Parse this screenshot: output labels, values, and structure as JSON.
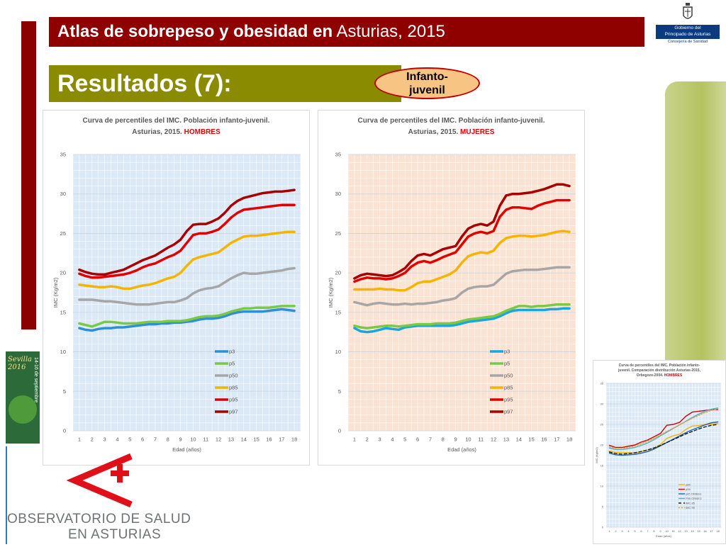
{
  "header": {
    "title_bold": "Atlas de sobrepeso y obesidad en",
    "title_light": "Asturias, 2015"
  },
  "section": {
    "title": "Resultados (7):",
    "tag_line1": "Infanto-",
    "tag_line2": "juvenil"
  },
  "gov_logo": {
    "line1": "Gobierno del",
    "line2": "Principado de Asturias",
    "line3": "Consejería de Sanidad"
  },
  "poster": {
    "text1": "Sevilla 2016",
    "text2": "14-16 de septiembre"
  },
  "observatorio": {
    "line1": "OBSERVATORIO DE SALUD",
    "line2": "EN ASTURIAS"
  },
  "colors": {
    "header": "#8f0000",
    "section": "#8b8b00",
    "left_bar": "#8b0000",
    "p3": "#2e8fd6",
    "p5": "#7ac943",
    "p50": "#a6a6a6",
    "p85": "#f4b400",
    "p95": "#e00000",
    "p97": "#a80000"
  },
  "chart_data": [
    {
      "type": "line",
      "title_line1": "Curva de percentiles del IMC. Población infanto-juvenil.",
      "title_line2": "Asturias, 2015.",
      "title_highlight": "HOMBRES",
      "xlabel": "Edad (años)",
      "ylabel": "IMC (Kg/m2)",
      "ylim": [
        0,
        35
      ],
      "yticks": [
        0,
        5,
        10,
        15,
        20,
        25,
        30,
        35
      ],
      "x": [
        1,
        1.5,
        2,
        2.5,
        3,
        3.5,
        4,
        4.5,
        5,
        5.5,
        6,
        6.5,
        7,
        7.5,
        8,
        8.5,
        9,
        9.5,
        10,
        10.5,
        11,
        11.5,
        12,
        12.5,
        13,
        13.5,
        14,
        14.5,
        15,
        15.5,
        16,
        16.5,
        17,
        17.5,
        18
      ],
      "xticks": [
        1,
        2,
        3,
        4,
        5,
        6,
        7,
        8,
        9,
        10,
        11,
        12,
        13,
        14,
        15,
        16,
        17,
        18
      ],
      "background": "#dbe9f7",
      "grid": true,
      "legend_position": "inside-bottom-right",
      "series": [
        {
          "name": "p3",
          "color": "#2e8fd6",
          "values": [
            13,
            12.8,
            12.7,
            12.9,
            13,
            13,
            13.1,
            13.1,
            13.2,
            13.3,
            13.4,
            13.5,
            13.5,
            13.6,
            13.6,
            13.7,
            13.7,
            13.8,
            13.9,
            14.1,
            14.2,
            14.2,
            14.3,
            14.5,
            14.8,
            15,
            15.1,
            15.1,
            15.1,
            15.1,
            15.2,
            15.3,
            15.4,
            15.3,
            15.2
          ]
        },
        {
          "name": "p5",
          "color": "#7ac943",
          "values": [
            13.6,
            13.4,
            13.2,
            13.5,
            13.8,
            13.8,
            13.7,
            13.6,
            13.6,
            13.6,
            13.7,
            13.8,
            13.8,
            13.8,
            13.9,
            13.9,
            13.9,
            14.0,
            14.2,
            14.4,
            14.5,
            14.5,
            14.6,
            14.8,
            15.1,
            15.3,
            15.5,
            15.5,
            15.6,
            15.6,
            15.6,
            15.7,
            15.8,
            15.8,
            15.8
          ]
        },
        {
          "name": "p50",
          "color": "#a6a6a6",
          "values": [
            16.6,
            16.6,
            16.6,
            16.5,
            16.4,
            16.4,
            16.3,
            16.2,
            16.1,
            16.0,
            16.0,
            16.0,
            16.1,
            16.2,
            16.3,
            16.3,
            16.5,
            16.8,
            17.4,
            17.8,
            18.0,
            18.1,
            18.3,
            18.8,
            19.3,
            19.7,
            20.0,
            19.9,
            19.9,
            20.0,
            20.1,
            20.2,
            20.3,
            20.5,
            20.6
          ]
        },
        {
          "name": "p85",
          "color": "#f4b400",
          "values": [
            18.5,
            18.4,
            18.3,
            18.2,
            18.2,
            18.3,
            18.2,
            18.0,
            18.0,
            18.2,
            18.4,
            18.5,
            18.7,
            19.0,
            19.3,
            19.5,
            20.0,
            20.9,
            21.7,
            22.0,
            22.2,
            22.4,
            22.6,
            23.2,
            23.8,
            24.2,
            24.6,
            24.7,
            24.7,
            24.8,
            24.9,
            25.0,
            25.1,
            25.2,
            25.2
          ]
        },
        {
          "name": "p95",
          "color": "#e00000",
          "values": [
            19.9,
            19.6,
            19.4,
            19.4,
            19.5,
            19.6,
            19.7,
            19.8,
            20.0,
            20.3,
            20.7,
            21.0,
            21.2,
            21.6,
            22.0,
            22.3,
            22.8,
            23.8,
            24.8,
            25.0,
            25.0,
            25.2,
            25.5,
            26.2,
            27.0,
            27.6,
            28.0,
            28.1,
            28.2,
            28.3,
            28.4,
            28.5,
            28.6,
            28.6,
            28.6
          ]
        },
        {
          "name": "p97",
          "color": "#a80000",
          "values": [
            20.4,
            20.1,
            19.9,
            19.8,
            19.8,
            20.0,
            20.2,
            20.4,
            20.8,
            21.2,
            21.6,
            21.9,
            22.2,
            22.7,
            23.2,
            23.6,
            24.2,
            25.3,
            26.1,
            26.2,
            26.2,
            26.5,
            26.9,
            27.6,
            28.5,
            29.1,
            29.5,
            29.7,
            29.9,
            30.1,
            30.2,
            30.3,
            30.3,
            30.4,
            30.5
          ]
        }
      ]
    },
    {
      "type": "line",
      "title_line1": "Curva de percentiles del IMC. Población infanto-juvenil.",
      "title_line2": "Asturias, 2015.",
      "title_highlight": "MUJERES",
      "xlabel": "Edad (años)",
      "ylabel": "IMC (Kg/m2)",
      "ylim": [
        0,
        35
      ],
      "yticks": [
        0,
        5,
        10,
        15,
        20,
        25,
        30,
        35
      ],
      "x": [
        1,
        1.5,
        2,
        2.5,
        3,
        3.5,
        4,
        4.5,
        5,
        5.5,
        6,
        6.5,
        7,
        7.5,
        8,
        8.5,
        9,
        9.5,
        10,
        10.5,
        11,
        11.5,
        12,
        12.5,
        13,
        13.5,
        14,
        14.5,
        15,
        15.5,
        16,
        16.5,
        17,
        17.5,
        18
      ],
      "xticks": [
        1,
        2,
        3,
        4,
        5,
        6,
        7,
        8,
        9,
        10,
        11,
        12,
        13,
        14,
        15,
        16,
        17,
        18
      ],
      "background": "#fbe3d4",
      "grid": true,
      "legend_position": "inside-bottom-right",
      "series": [
        {
          "name": "p3",
          "color": "#1aa6dd",
          "values": [
            13.0,
            12.6,
            12.5,
            12.6,
            12.8,
            13.0,
            12.9,
            12.8,
            13.1,
            13.2,
            13.3,
            13.3,
            13.3,
            13.3,
            13.3,
            13.3,
            13.4,
            13.6,
            13.8,
            13.9,
            14.0,
            14.1,
            14.2,
            14.5,
            14.9,
            15.2,
            15.3,
            15.3,
            15.3,
            15.3,
            15.3,
            15.4,
            15.4,
            15.5,
            15.5
          ]
        },
        {
          "name": "p5",
          "color": "#7ac943",
          "values": [
            13.3,
            13.1,
            13.0,
            13.1,
            13.2,
            13.3,
            13.3,
            13.2,
            13.3,
            13.4,
            13.5,
            13.5,
            13.5,
            13.6,
            13.6,
            13.6,
            13.7,
            13.9,
            14.1,
            14.2,
            14.3,
            14.4,
            14.5,
            14.8,
            15.2,
            15.5,
            15.8,
            15.8,
            15.7,
            15.8,
            15.8,
            15.9,
            16.0,
            16.0,
            16.0
          ]
        },
        {
          "name": "p50",
          "color": "#a6a6a6",
          "values": [
            16.3,
            16.1,
            15.9,
            16.1,
            16.2,
            16.1,
            16.0,
            16.0,
            16.1,
            16.0,
            16.1,
            16.1,
            16.2,
            16.3,
            16.5,
            16.6,
            16.8,
            17.5,
            18.0,
            18.2,
            18.3,
            18.3,
            18.5,
            19.2,
            19.9,
            20.2,
            20.3,
            20.4,
            20.4,
            20.4,
            20.5,
            20.6,
            20.7,
            20.7,
            20.7
          ]
        },
        {
          "name": "p85",
          "color": "#f4b400",
          "values": [
            17.9,
            17.9,
            17.9,
            17.9,
            18.0,
            17.9,
            17.9,
            17.8,
            17.8,
            18.2,
            18.7,
            18.9,
            18.9,
            19.2,
            19.5,
            19.8,
            20.3,
            21.3,
            22.1,
            22.4,
            22.6,
            22.5,
            22.8,
            23.8,
            24.4,
            24.6,
            24.7,
            24.7,
            24.6,
            24.7,
            24.8,
            25.0,
            25.2,
            25.3,
            25.2
          ]
        },
        {
          "name": "p95",
          "color": "#e00000",
          "values": [
            18.9,
            19.2,
            19.4,
            19.3,
            19.3,
            19.2,
            19.3,
            19.6,
            20.0,
            20.8,
            21.3,
            21.5,
            21.3,
            21.6,
            22.0,
            22.3,
            22.6,
            23.6,
            24.6,
            25.0,
            25.2,
            25.0,
            25.3,
            27.1,
            28.0,
            28.3,
            28.3,
            28.2,
            28.1,
            28.5,
            28.8,
            29.0,
            29.2,
            29.2,
            29.2
          ]
        },
        {
          "name": "p97",
          "color": "#a80000",
          "values": [
            19.3,
            19.7,
            19.9,
            19.8,
            19.7,
            19.6,
            19.7,
            20.1,
            20.6,
            21.5,
            22.2,
            22.4,
            22.2,
            22.6,
            23.0,
            23.2,
            23.4,
            24.6,
            25.6,
            26.0,
            26.2,
            26.0,
            26.5,
            28.5,
            29.8,
            30.0,
            30.0,
            30.1,
            30.2,
            30.4,
            30.6,
            30.9,
            31.2,
            31.2,
            31.0
          ]
        }
      ]
    },
    {
      "type": "line",
      "title_line1": "Curva de percentiles del IMC. Población infanto-",
      "title_line2": "juvenil. Comparación distribución Asturias-2015,",
      "title_line3": "Orbegozo-2004.",
      "title_highlight": "HOMBRES",
      "xlabel": "Edad (años)",
      "ylabel": "IMC (Kg/m2)",
      "ylim": [
        0,
        35
      ],
      "yticks": [
        0,
        5,
        10,
        15,
        20,
        25,
        30,
        35
      ],
      "x": [
        1,
        2,
        3,
        4,
        5,
        6,
        7,
        8,
        9,
        10,
        11,
        12,
        13,
        14,
        15,
        16,
        17,
        18
      ],
      "xticks": [
        1,
        2,
        3,
        4,
        5,
        6,
        7,
        8,
        9,
        10,
        11,
        12,
        13,
        14,
        15,
        16,
        17,
        18
      ],
      "background": "#dbe9f7",
      "grid": true,
      "legend_position": "inside-bottom-right",
      "series": [
        {
          "name": "p85",
          "color": "#f4b400",
          "dash": "",
          "values": [
            18.5,
            18.2,
            18.2,
            18.1,
            18.0,
            18.4,
            18.8,
            19.2,
            20.1,
            21.6,
            22.2,
            22.6,
            23.8,
            24.6,
            24.7,
            25.0,
            25.1,
            25.2
          ]
        },
        {
          "name": "p95",
          "color": "#d00000",
          "dash": "",
          "values": [
            19.9,
            19.4,
            19.4,
            19.7,
            20.0,
            20.7,
            21.2,
            22.0,
            22.8,
            24.8,
            25.0,
            25.5,
            27.0,
            28.0,
            28.2,
            28.4,
            28.6,
            28.6
          ]
        },
        {
          "name": "p85 ORBEG",
          "color": "#1f5fa8",
          "dash": "",
          "values": [
            18.0,
            17.6,
            17.5,
            17.6,
            17.7,
            18.0,
            18.4,
            19.0,
            19.8,
            20.6,
            21.4,
            22.2,
            23.0,
            23.7,
            24.3,
            24.9,
            25.4,
            25.6
          ]
        },
        {
          "name": "P95 ORBEG",
          "color": "#4fb0c6",
          "dash": "",
          "values": [
            19.2,
            18.9,
            18.9,
            19.1,
            19.4,
            19.9,
            20.5,
            21.3,
            22.2,
            23.1,
            24.0,
            24.9,
            25.8,
            26.7,
            27.5,
            28.2,
            28.7,
            29.0
          ]
        },
        {
          "name": "IMC 85",
          "color": "#1a1a1a",
          "dash": "4,3",
          "values": [
            18.3,
            17.9,
            17.8,
            17.9,
            18.1,
            18.4,
            18.8,
            19.3,
            19.9,
            20.6,
            21.3,
            22.0,
            22.7,
            23.3,
            23.9,
            24.4,
            24.8,
            25.0
          ]
        },
        {
          "name": "IMC 95",
          "color": "#e8a040",
          "dash": "2,2",
          "values": [
            19.5,
            19.2,
            19.2,
            19.4,
            19.8,
            20.3,
            20.9,
            21.6,
            22.4,
            23.3,
            24.1,
            24.9,
            25.7,
            26.5,
            27.2,
            27.9,
            28.4,
            28.8
          ]
        }
      ]
    }
  ]
}
